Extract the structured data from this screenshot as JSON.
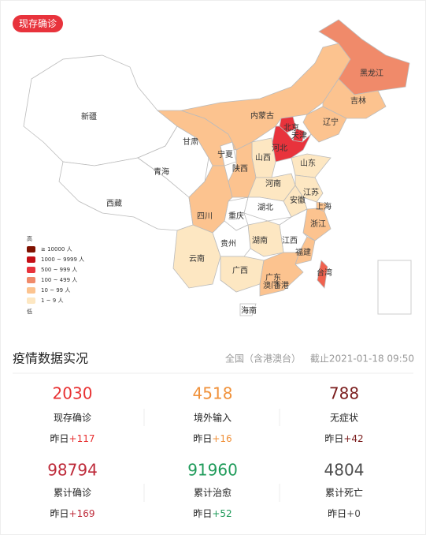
{
  "badge": "现存确诊",
  "map": {
    "provinces": [
      {
        "name": "新疆",
        "color": "#ffffff"
      },
      {
        "name": "西藏",
        "color": "#ffffff"
      },
      {
        "name": "青海",
        "color": "#ffffff"
      },
      {
        "name": "甘肃",
        "color": "#fcc38f"
      },
      {
        "name": "内蒙古",
        "color": "#fcc38f"
      },
      {
        "name": "黑龙江",
        "color": "#f08a6a"
      },
      {
        "name": "吉林",
        "color": "#fcc38f"
      },
      {
        "name": "辽宁",
        "color": "#fcc38f"
      },
      {
        "name": "北京",
        "color": "#e8333c"
      },
      {
        "name": "天津",
        "color": "#e8333c"
      },
      {
        "name": "河北",
        "color": "#e8333c"
      },
      {
        "name": "山西",
        "color": "#fde7c2"
      },
      {
        "name": "山东",
        "color": "#fde7c2"
      },
      {
        "name": "宁夏",
        "color": "#ffffff"
      },
      {
        "name": "陕西",
        "color": "#fcc38f"
      },
      {
        "name": "河南",
        "color": "#fde7c2"
      },
      {
        "name": "江苏",
        "color": "#fde7c2"
      },
      {
        "name": "安徽",
        "color": "#fde7c2"
      },
      {
        "name": "上海",
        "color": "#fcc38f"
      },
      {
        "name": "湖北",
        "color": "#ffffff"
      },
      {
        "name": "重庆",
        "color": "#ffffff"
      },
      {
        "name": "四川",
        "color": "#fcc38f"
      },
      {
        "name": "浙江",
        "color": "#fcc38f"
      },
      {
        "name": "江西",
        "color": "#ffffff"
      },
      {
        "name": "湖南",
        "color": "#fde7c2"
      },
      {
        "name": "贵州",
        "color": "#ffffff"
      },
      {
        "name": "云南",
        "color": "#fde7c2"
      },
      {
        "name": "福建",
        "color": "#fcc38f"
      },
      {
        "name": "广西",
        "color": "#fde7c2"
      },
      {
        "name": "广东",
        "color": "#fcc38f"
      },
      {
        "name": "香港",
        "color": "#fcc38f"
      },
      {
        "name": "澳门",
        "color": "#fde7c2"
      },
      {
        "name": "台湾",
        "color": "#f0624f"
      },
      {
        "name": "海南",
        "color": "#ffffff"
      }
    ],
    "legend": {
      "high": "高",
      "low": "低",
      "items": [
        {
          "label": "≥ 10000 人",
          "color": "#7f1100"
        },
        {
          "label": "1000 ~ 9999 人",
          "color": "#c40f16"
        },
        {
          "label": "500 ~ 999 人",
          "color": "#e8333c"
        },
        {
          "label": "100 ~ 499 人",
          "color": "#f08a6a"
        },
        {
          "label": "10 ~ 99 人",
          "color": "#fcc38f"
        },
        {
          "label": "1 ~ 9 人",
          "color": "#fde7c2"
        }
      ]
    }
  },
  "stats": {
    "title": "疫情数据实况",
    "scope": "全国（含港澳台）",
    "updated": "截止2021-01-18 09:50",
    "items": [
      {
        "value": 2030,
        "label": "现存确诊",
        "prefix": "昨日",
        "delta": "+117",
        "color": "#e83132",
        "delta_color": "#e83132"
      },
      {
        "value": 4518,
        "label": "境外输入",
        "prefix": "昨日",
        "delta": "+16",
        "color": "#f0913a",
        "delta_color": "#f0913a"
      },
      {
        "value": 788,
        "label": "无症状",
        "prefix": "昨日",
        "delta": "+42",
        "color": "#7a1c1c",
        "delta_color": "#7a1c1c"
      },
      {
        "value": 98794,
        "label": "累计确诊",
        "prefix": "昨日",
        "delta": "+169",
        "color": "#be2b3a",
        "delta_color": "#be2b3a"
      },
      {
        "value": 91960,
        "label": "累计治愈",
        "prefix": "昨日",
        "delta": "+52",
        "color": "#1f9b5a",
        "delta_color": "#1f9b5a"
      },
      {
        "value": 4804,
        "label": "累计死亡",
        "prefix": "昨日",
        "delta": "+0",
        "color": "#4d4d4d",
        "delta_color": "#4d4d4d"
      }
    ]
  }
}
